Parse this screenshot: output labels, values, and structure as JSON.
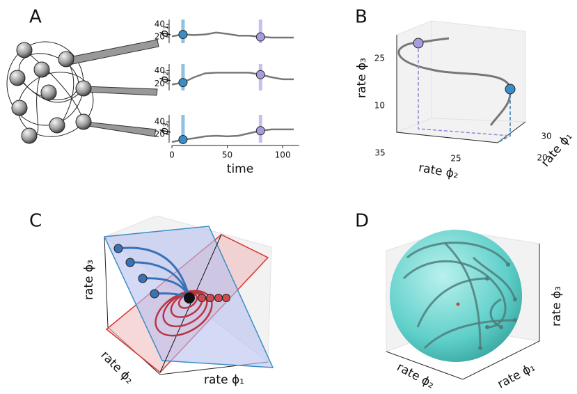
{
  "panels": {
    "a": {
      "label": "A",
      "xlabel": "time",
      "xlim": [
        0,
        115
      ],
      "xticks": [
        0,
        50,
        100
      ],
      "x": [
        0,
        10,
        20,
        30,
        40,
        50,
        60,
        70,
        80,
        90,
        100,
        110
      ],
      "markers_x": [
        10,
        80
      ],
      "plots": [
        {
          "ylabel": "ϕ₁",
          "ylim": [
            10,
            48
          ],
          "yticks": [
            20,
            40
          ],
          "values": [
            21,
            24,
            23,
            24,
            27,
            25,
            22,
            22,
            20,
            19,
            19,
            19
          ]
        },
        {
          "ylabel": "ϕ₂",
          "ylim": [
            10,
            50
          ],
          "yticks": [
            20,
            40
          ],
          "values": [
            19,
            22,
            30,
            36,
            37,
            37,
            37,
            37,
            34,
            30,
            27,
            27
          ]
        },
        {
          "ylabel": "ϕ₃",
          "ylim": [
            7,
            51
          ],
          "yticks": [
            20,
            40
          ],
          "values": [
            8,
            12,
            14,
            17,
            18,
            17,
            18,
            22,
            26,
            28,
            28,
            28
          ]
        }
      ]
    },
    "b": {
      "label": "B",
      "zlabel": "rate ϕ₃",
      "zticks": [
        25,
        10
      ],
      "ylabel": "rate ϕ₂",
      "yticks": [
        35,
        25
      ],
      "xlabel": "rate ϕ₁",
      "xticks": [
        30,
        20
      ]
    },
    "c": {
      "label": "C",
      "zlabel": "rate ϕ₃",
      "ylabel": "rate ϕ₂",
      "xlabel": "rate ϕ₁"
    },
    "d": {
      "label": "D",
      "zlabel": "rate ϕ₃",
      "ylabel": "rate ϕ₂",
      "xlabel": "rate ϕ₁"
    }
  }
}
